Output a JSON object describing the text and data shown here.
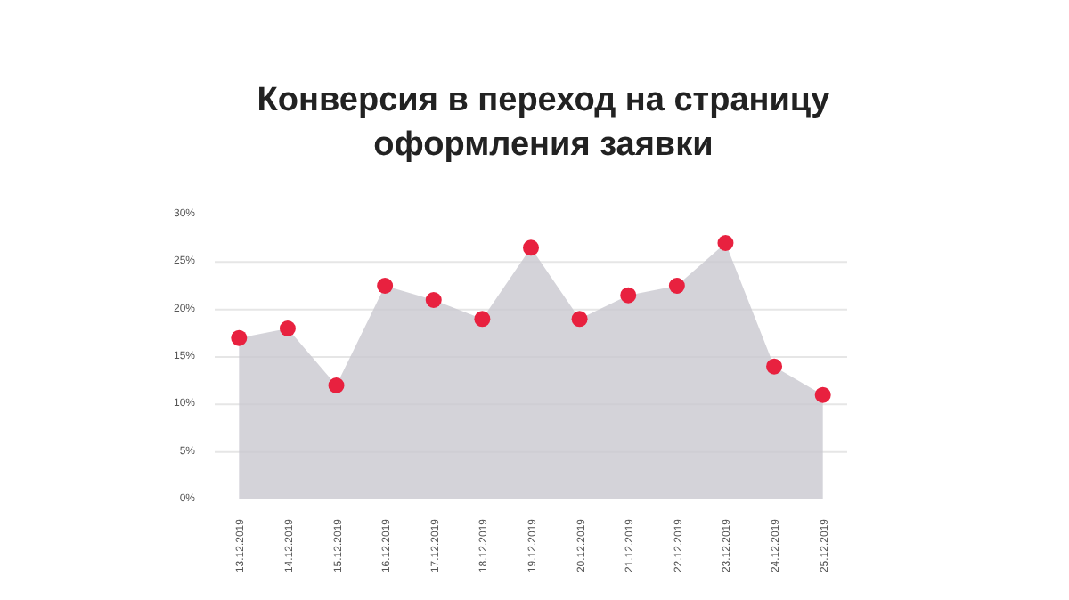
{
  "chart_data": {
    "type": "area",
    "title": "Конверсия в переход на страницу\nоформления заявки",
    "categories": [
      "13.12.2019",
      "14.12.2019",
      "15.12.2019",
      "16.12.2019",
      "17.12.2019",
      "18.12.2019",
      "19.12.2019",
      "20.12.2019",
      "21.12.2019",
      "22.12.2019",
      "23.12.2019",
      "24.12.2019",
      "25.12.2019"
    ],
    "series": [
      {
        "color": "#c9c8d0",
        "values": [
          17,
          18,
          12,
          22.5,
          21,
          19,
          26.5,
          19,
          21.5,
          22.5,
          27,
          14,
          11
        ]
      },
      {
        "type": "scatter",
        "marker": "circle",
        "color": "#e8213f",
        "values": [
          17,
          18,
          12,
          22.5,
          21,
          19,
          26.5,
          19,
          21.5,
          22.5,
          27,
          14,
          11
        ]
      }
    ],
    "ylim": [
      0,
      30
    ],
    "yticks": [
      {
        "value": 0,
        "label": "0%"
      },
      {
        "value": 5,
        "label": "5%"
      },
      {
        "value": 10,
        "label": "10%"
      },
      {
        "value": 15,
        "label": "15%"
      },
      {
        "value": 20,
        "label": "20%"
      },
      {
        "value": 25,
        "label": "25%"
      },
      {
        "value": 30,
        "label": "30%"
      }
    ],
    "grid": "y"
  }
}
